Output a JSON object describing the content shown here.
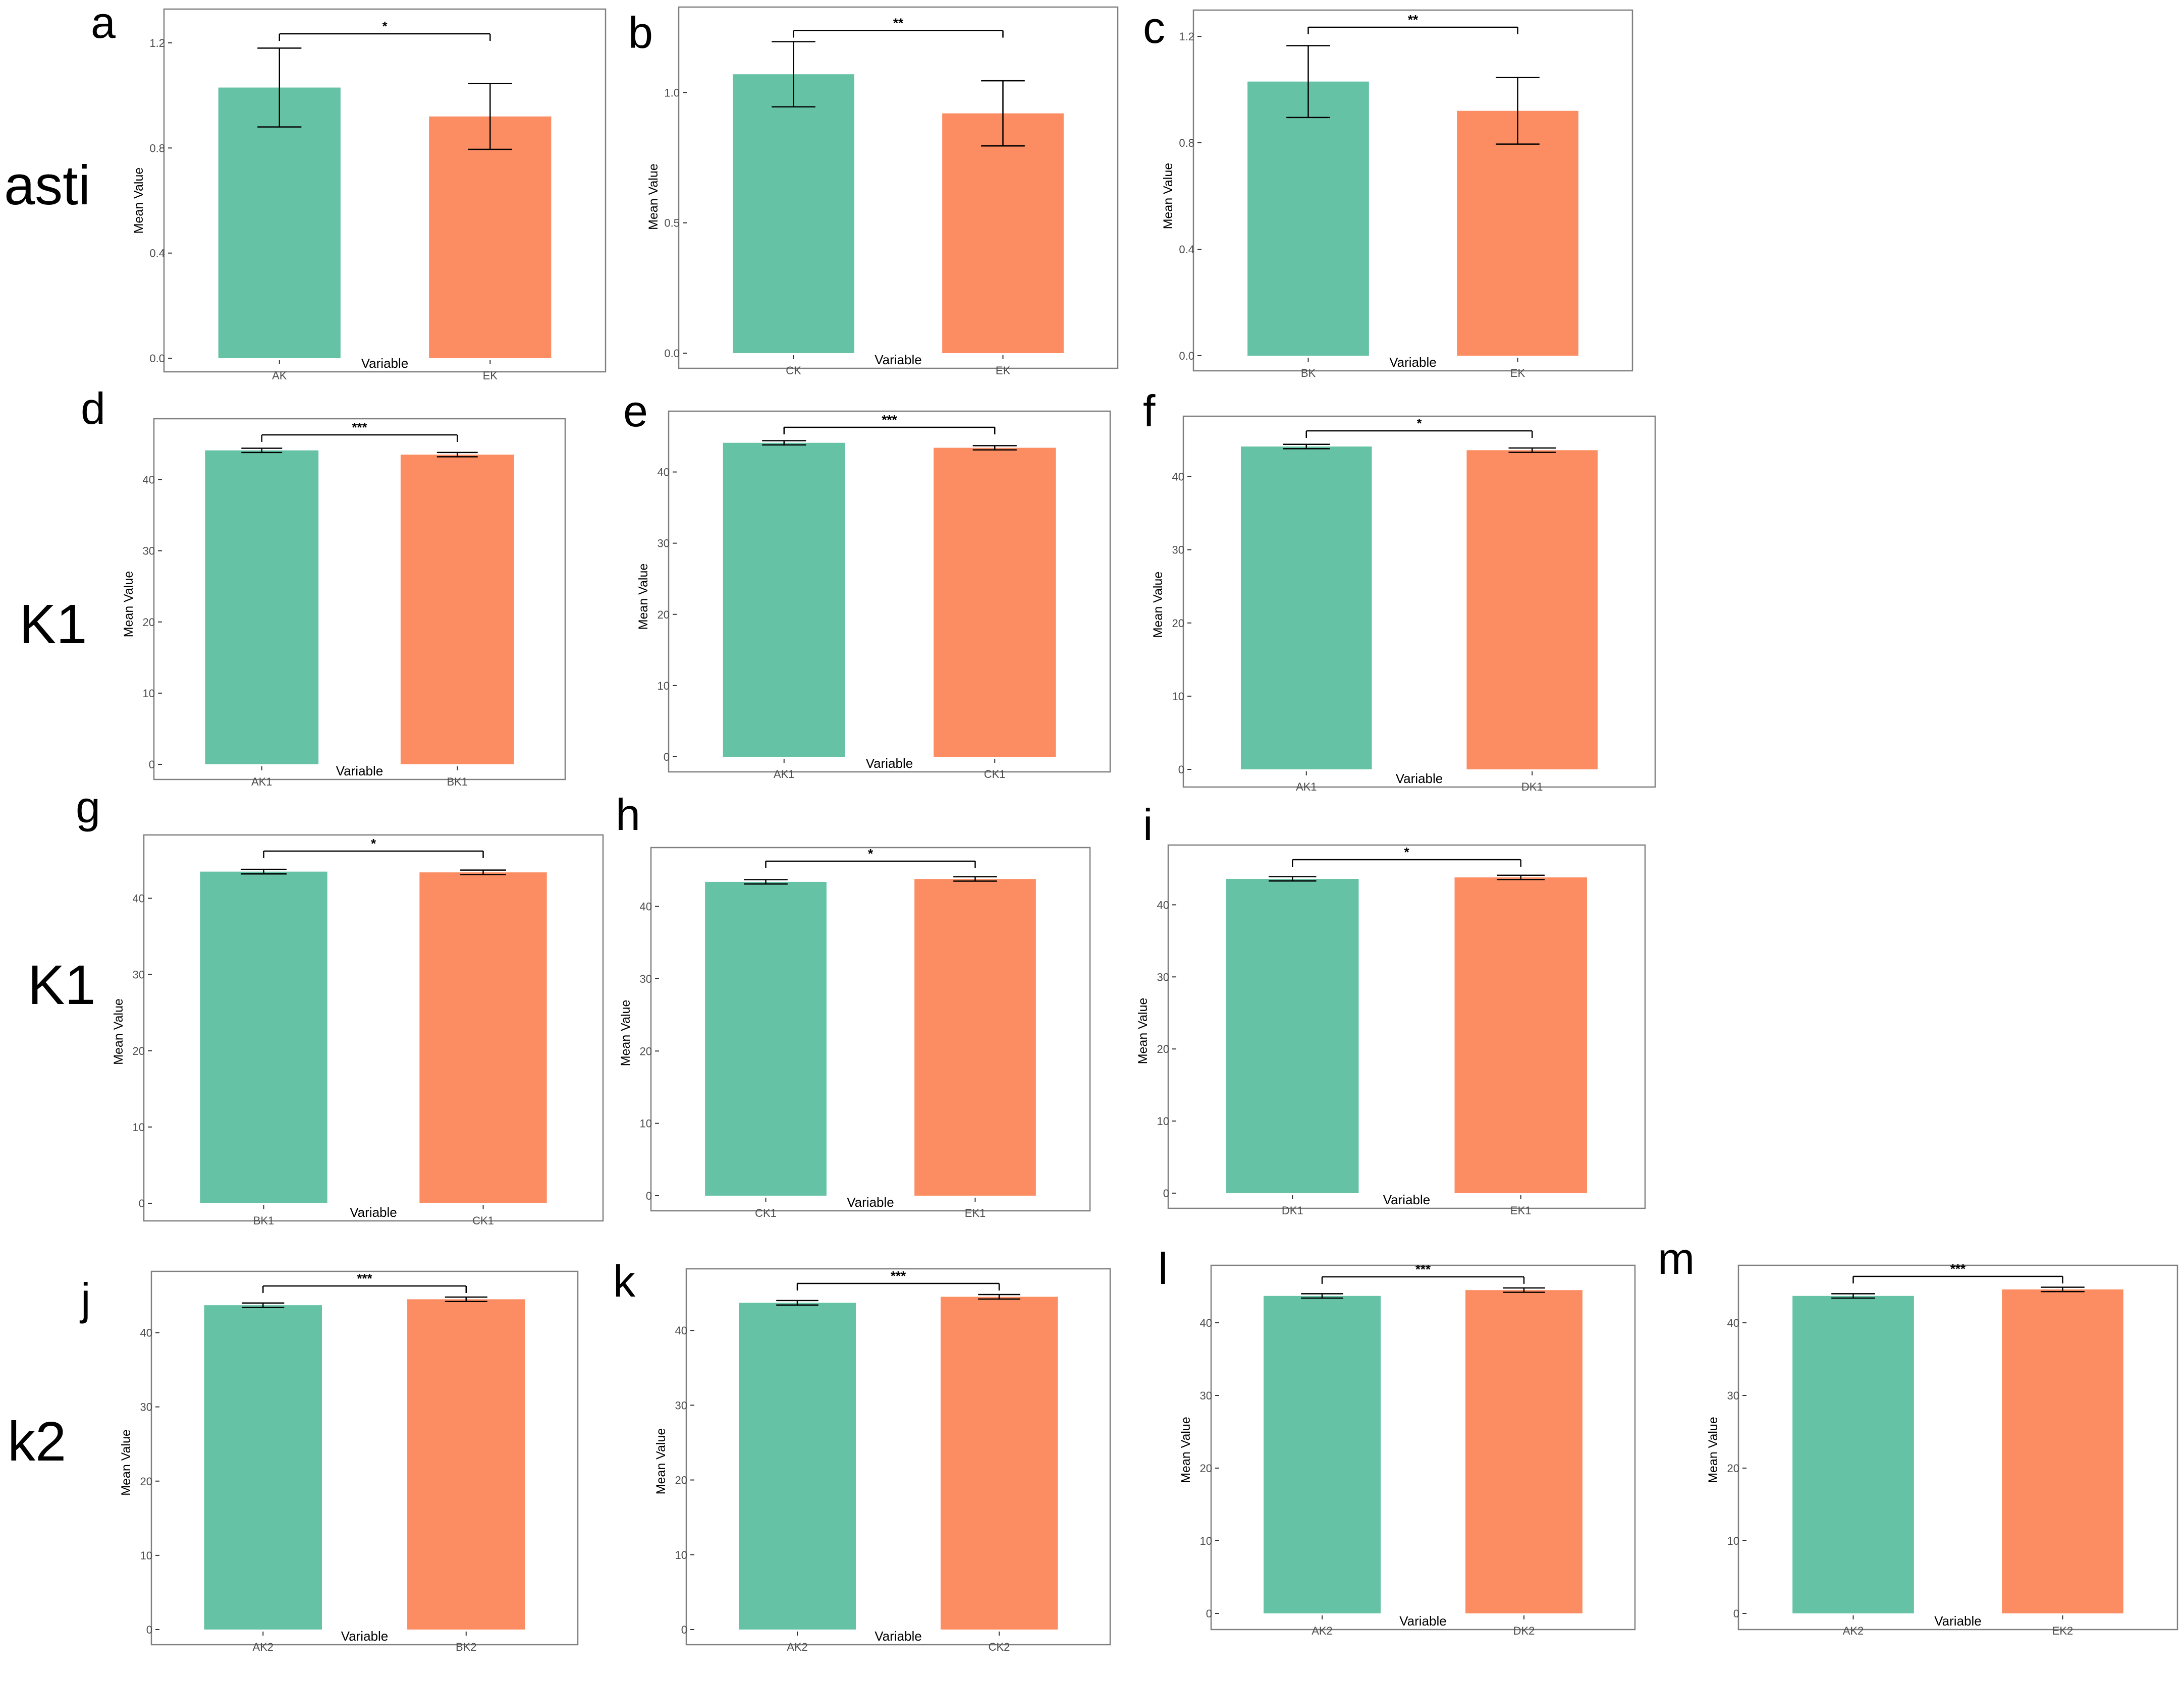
{
  "figure": {
    "row_labels": [
      "asti",
      "K1",
      "K1",
      "k2"
    ],
    "colors": {
      "green": "#66c2a5",
      "orange": "#fc8d62",
      "frame": "#7f7f7f",
      "tick": "#4d4d4d"
    }
  },
  "chart_data": [
    {
      "panel": "a",
      "type": "bar",
      "categories": [
        "AK",
        "EK"
      ],
      "values": [
        1.03,
        0.92
      ],
      "err": [
        0.15,
        0.125
      ],
      "ylim": [
        0,
        1.2
      ],
      "yticks": [
        0.0,
        0.4,
        0.8,
        1.2
      ],
      "ytick_labels": [
        "0.0",
        "0.4",
        "0.8",
        "1.2"
      ],
      "xlabel": "Variable",
      "ylabel": "Mean Value",
      "significance": "*",
      "grid": false
    },
    {
      "panel": "b",
      "type": "bar",
      "categories": [
        "CK",
        "EK"
      ],
      "values": [
        1.07,
        0.92
      ],
      "err": [
        0.125,
        0.125
      ],
      "ylim": [
        0,
        1.2
      ],
      "yticks": [
        0.0,
        0.5,
        1.0
      ],
      "ytick_labels": [
        "0.0",
        "0.5",
        "1.0"
      ],
      "xlabel": "Variable",
      "ylabel": "Mean Value",
      "significance": "**",
      "grid": false
    },
    {
      "panel": "c",
      "type": "bar",
      "categories": [
        "BK",
        "EK"
      ],
      "values": [
        1.03,
        0.92
      ],
      "err": [
        0.135,
        0.125
      ],
      "ylim": [
        0,
        1.2
      ],
      "yticks": [
        0.0,
        0.4,
        0.8,
        1.2
      ],
      "ytick_labels": [
        "0.0",
        "0.4",
        "0.8",
        "1.2"
      ],
      "xlabel": "Variable",
      "ylabel": "Mean Value",
      "significance": "**",
      "grid": false
    },
    {
      "panel": "d",
      "type": "bar",
      "categories": [
        "AK1",
        "BK1"
      ],
      "values": [
        44.1,
        43.5
      ],
      "err": [
        0.3,
        0.3
      ],
      "ylim": [
        0,
        45
      ],
      "yticks": [
        0,
        10,
        20,
        30,
        40
      ],
      "ytick_labels": [
        "0",
        "10",
        "20",
        "30",
        "40"
      ],
      "xlabel": "Variable",
      "ylabel": "Mean Value",
      "significance": "***",
      "grid": false
    },
    {
      "panel": "e",
      "type": "bar",
      "categories": [
        "AK1",
        "CK1"
      ],
      "values": [
        44.1,
        43.4
      ],
      "err": [
        0.3,
        0.3
      ],
      "ylim": [
        0,
        45
      ],
      "yticks": [
        0,
        10,
        20,
        30,
        40
      ],
      "ytick_labels": [
        "0",
        "10",
        "20",
        "30",
        "40"
      ],
      "xlabel": "Variable",
      "ylabel": "Mean Value",
      "significance": "***",
      "grid": false
    },
    {
      "panel": "f",
      "type": "bar",
      "categories": [
        "AK1",
        "DK1"
      ],
      "values": [
        44.1,
        43.6
      ],
      "err": [
        0.3,
        0.3
      ],
      "ylim": [
        0,
        45
      ],
      "yticks": [
        0,
        10,
        20,
        30,
        40
      ],
      "ytick_labels": [
        "0",
        "10",
        "20",
        "30",
        "40"
      ],
      "xlabel": "Variable",
      "ylabel": "Mean Value",
      "significance": "*",
      "grid": false
    },
    {
      "panel": "g",
      "type": "bar",
      "categories": [
        "BK1",
        "CK1"
      ],
      "values": [
        43.5,
        43.4
      ],
      "err": [
        0.3,
        0.3
      ],
      "ylim": [
        0,
        45
      ],
      "yticks": [
        0,
        10,
        20,
        30,
        40
      ],
      "ytick_labels": [
        "0",
        "10",
        "20",
        "30",
        "40"
      ],
      "xlabel": "Variable",
      "ylabel": "Mean Value",
      "significance": "*",
      "grid": false
    },
    {
      "panel": "h",
      "type": "bar",
      "categories": [
        "CK1",
        "EK1"
      ],
      "values": [
        43.4,
        43.8
      ],
      "err": [
        0.3,
        0.3
      ],
      "ylim": [
        0,
        45
      ],
      "yticks": [
        0,
        10,
        20,
        30,
        40
      ],
      "ytick_labels": [
        "0",
        "10",
        "20",
        "30",
        "40"
      ],
      "xlabel": "Variable",
      "ylabel": "Mean Value",
      "significance": "*",
      "grid": false
    },
    {
      "panel": "i",
      "type": "bar",
      "categories": [
        "DK1",
        "EK1"
      ],
      "values": [
        43.6,
        43.8
      ],
      "err": [
        0.3,
        0.3
      ],
      "ylim": [
        0,
        45
      ],
      "yticks": [
        0,
        10,
        20,
        30,
        40
      ],
      "ytick_labels": [
        "0",
        "10",
        "20",
        "30",
        "40"
      ],
      "xlabel": "Variable",
      "ylabel": "Mean Value",
      "significance": "*",
      "grid": false
    },
    {
      "panel": "j",
      "type": "bar",
      "categories": [
        "AK2",
        "BK2"
      ],
      "values": [
        43.7,
        44.5
      ],
      "err": [
        0.3,
        0.3
      ],
      "ylim": [
        0,
        45
      ],
      "yticks": [
        0,
        10,
        20,
        30,
        40
      ],
      "ytick_labels": [
        "0",
        "10",
        "20",
        "30",
        "40"
      ],
      "xlabel": "Variable",
      "ylabel": "Mean Value",
      "significance": "***",
      "grid": false
    },
    {
      "panel": "k",
      "type": "bar",
      "categories": [
        "AK2",
        "CK2"
      ],
      "values": [
        43.7,
        44.5
      ],
      "err": [
        0.3,
        0.3
      ],
      "ylim": [
        0,
        45
      ],
      "yticks": [
        0,
        10,
        20,
        30,
        40
      ],
      "ytick_labels": [
        "0",
        "10",
        "20",
        "30",
        "40"
      ],
      "xlabel": "Variable",
      "ylabel": "Mean Value",
      "significance": "***",
      "grid": false
    },
    {
      "panel": "l",
      "type": "bar",
      "categories": [
        "AK2",
        "DK2"
      ],
      "values": [
        43.7,
        44.5
      ],
      "err": [
        0.3,
        0.3
      ],
      "ylim": [
        0,
        45
      ],
      "yticks": [
        0,
        10,
        20,
        30,
        40
      ],
      "ytick_labels": [
        "0",
        "10",
        "20",
        "30",
        "40"
      ],
      "xlabel": "Variable",
      "ylabel": "Mean Value",
      "significance": "***",
      "grid": false
    },
    {
      "panel": "m",
      "type": "bar",
      "categories": [
        "AK2",
        "EK2"
      ],
      "values": [
        43.7,
        44.6
      ],
      "err": [
        0.3,
        0.3
      ],
      "ylim": [
        0,
        45
      ],
      "yticks": [
        0,
        10,
        20,
        30,
        40
      ],
      "ytick_labels": [
        "0",
        "10",
        "20",
        "30",
        "40"
      ],
      "xlabel": "Variable",
      "ylabel": "Mean Value",
      "significance": "***",
      "grid": false
    }
  ]
}
